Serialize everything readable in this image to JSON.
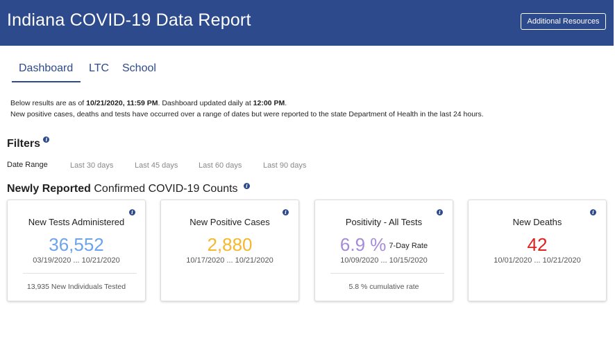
{
  "header": {
    "title": "Indiana COVID-19 Data Report",
    "resources_label": "Additional Resources"
  },
  "tabs": [
    {
      "label": "Dashboard",
      "active": true
    },
    {
      "label": "LTC",
      "active": false
    },
    {
      "label": "School",
      "active": false
    }
  ],
  "notes": {
    "line1_prefix": "Below results are as of ",
    "line1_date": "10/21/2020, 11:59 PM",
    "line1_mid": ". Dashboard updated daily at ",
    "line1_time": "12:00 PM",
    "line1_suffix": ".",
    "line2": "New positive cases, deaths and tests have occurred over a range of dates but were reported to the state Department of Health in the last 24 hours."
  },
  "filters": {
    "title": "Filters",
    "date_range_label": "Date Range",
    "options": [
      "Last 30 days",
      "Last 45 days",
      "Last 60 days",
      "Last 90 days"
    ]
  },
  "counts": {
    "title_bold": "Newly Reported",
    "title_rest": " Confirmed COVID-19 Counts"
  },
  "cards": [
    {
      "title": "New Tests Administered",
      "value": "36,552",
      "dates": "03/19/2020 ... 10/21/2020",
      "footer": "13,935 New Individuals Tested",
      "color": "#6da3ee"
    },
    {
      "title": "New Positive Cases",
      "value": "2,880",
      "dates": "10/17/2020 ... 10/21/2020",
      "color": "#f5b72c"
    },
    {
      "title": "Positivity - All Tests",
      "value": "6.9 %",
      "value_suffix": "7-Day Rate",
      "dates": "10/09/2020 ... 10/15/2020",
      "footer": "5.8 % cumulative rate",
      "color": "#a58ad9"
    },
    {
      "title": "New Deaths",
      "value": "42",
      "dates": "10/01/2020 ... 10/21/2020",
      "color": "#e0201c"
    }
  ],
  "colors": {
    "header_bg": "#2d4a8d",
    "accent": "#2d4a8d"
  }
}
